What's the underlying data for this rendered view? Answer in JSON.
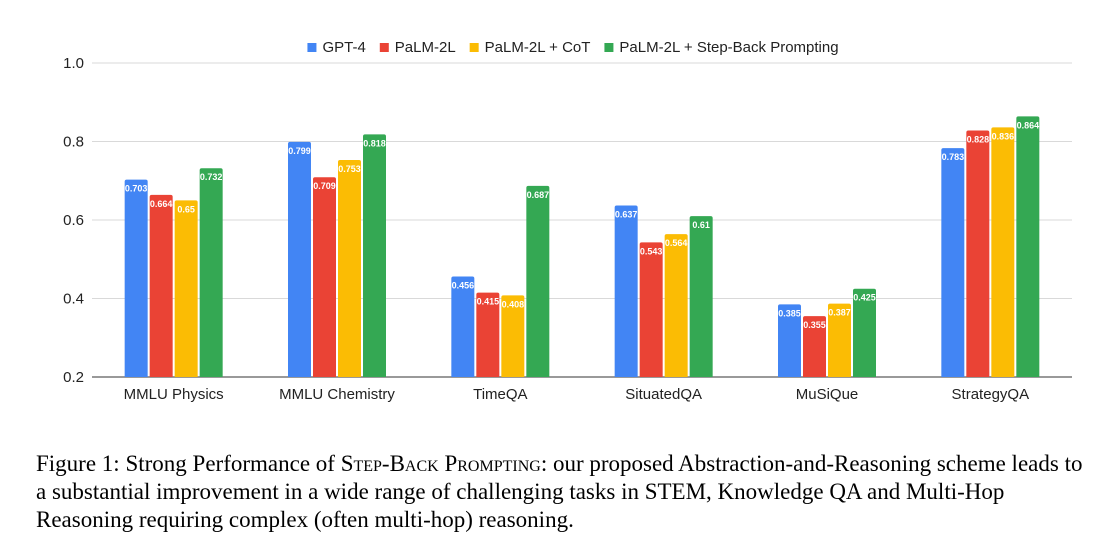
{
  "chart_data": {
    "type": "bar",
    "categories": [
      "MMLU Physics",
      "MMLU Chemistry",
      "TimeQA",
      "SituatedQA",
      "MuSiQue",
      "StrategyQA"
    ],
    "series": [
      {
        "name": "GPT-4",
        "color": "#4285F4",
        "values": [
          0.703,
          0.799,
          0.456,
          0.637,
          0.385,
          0.783
        ]
      },
      {
        "name": "PaLM-2L",
        "color": "#EA4335",
        "values": [
          0.664,
          0.709,
          0.415,
          0.543,
          0.355,
          0.828
        ]
      },
      {
        "name": "PaLM-2L + CoT",
        "color": "#FBBC04",
        "values": [
          0.65,
          0.753,
          0.408,
          0.564,
          0.387,
          0.836
        ]
      },
      {
        "name": "PaLM-2L + Step-Back Prompting",
        "color": "#34A853",
        "values": [
          0.732,
          0.818,
          0.687,
          0.61,
          0.425,
          0.864
        ]
      }
    ],
    "ylim": [
      0.2,
      1.0
    ],
    "yticks": [
      "0.2",
      "0.4",
      "0.6",
      "0.8",
      "1.0"
    ],
    "grid": true,
    "legend_position": "top-center"
  },
  "caption": {
    "prefix": "Figure 1: Strong Performance of ",
    "method": "Step-Back Prompting",
    "rest": ": our proposed Abstraction-and-Reasoning scheme leads to a substantial improvement in a wide range of challenging tasks in STEM, Knowledge QA and Multi-Hop Reasoning requiring complex (often multi-hop) reasoning."
  }
}
